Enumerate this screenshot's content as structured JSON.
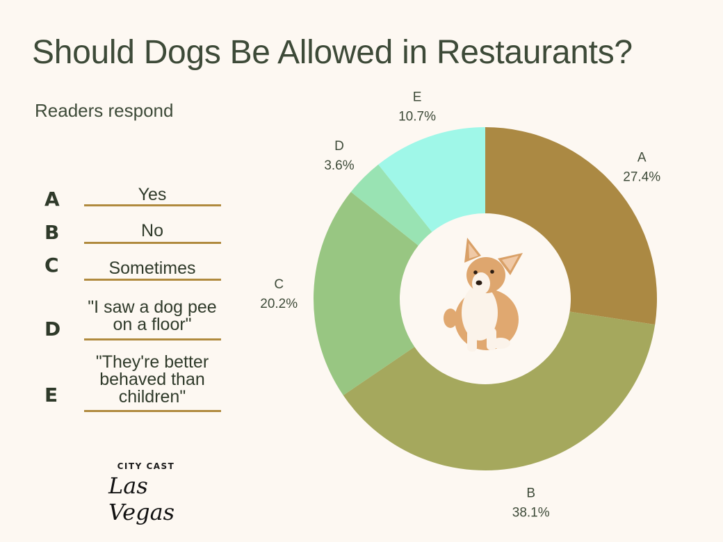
{
  "title": "Should Dogs Be Allowed in Restaurants?",
  "subtitle": "Readers respond",
  "legend": [
    {
      "letter": "A",
      "lines": [
        "Yes"
      ]
    },
    {
      "letter": "B",
      "lines": [
        "No"
      ]
    },
    {
      "letter": "C",
      "lines": [
        "Sometimes"
      ]
    },
    {
      "letter": "D",
      "lines": [
        "\"I saw a dog pee",
        "on a floor\""
      ]
    },
    {
      "letter": "E",
      "lines": [
        "\"They're better",
        "behaved than",
        "children\""
      ]
    }
  ],
  "logo": {
    "top": "CITY CAST",
    "script": "Las Vegas"
  },
  "colors": {
    "A": "#ab8943",
    "B": "#a5a85d",
    "C": "#98c682",
    "D": "#99e3b3",
    "E": "#9ff7e8",
    "legend_line": "#b08a3e"
  },
  "chart_data": {
    "type": "pie",
    "donut": true,
    "categories": [
      "A",
      "B",
      "C",
      "D",
      "E"
    ],
    "values": [
      27.4,
      38.1,
      20.2,
      3.6,
      10.7
    ],
    "value_labels": [
      "27.4%",
      "38.1%",
      "20.2%",
      "3.6%",
      "10.7%"
    ],
    "start": "top",
    "direction": "clockwise",
    "center_image": "corgi"
  }
}
